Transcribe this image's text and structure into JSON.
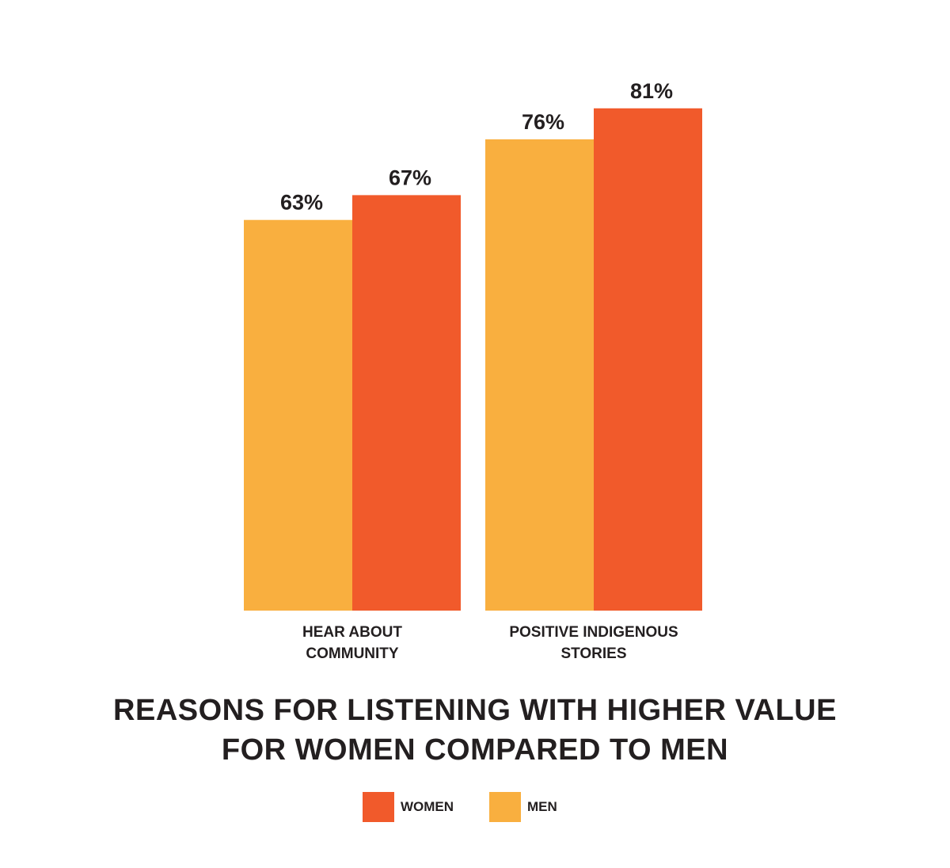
{
  "chart_data": {
    "type": "bar",
    "categories": [
      [
        "HEAR ABOUT",
        "COMMUNITY"
      ],
      [
        "POSITIVE INDIGENOUS",
        "STORIES"
      ]
    ],
    "series": [
      {
        "name": "MEN",
        "values": [
          63,
          76
        ],
        "color": "#F9AF3F"
      },
      {
        "name": "WOMEN",
        "values": [
          67,
          81
        ],
        "color": "#F15A2B"
      }
    ],
    "value_labels": [
      [
        "63%",
        "67%"
      ],
      [
        "76%",
        "81%"
      ]
    ],
    "title": [
      "REASONS FOR LISTENING WITH HIGHER VALUE",
      "FOR WOMEN COMPARED TO MEN"
    ],
    "xlabel": "",
    "ylabel": "",
    "ylim": [
      0,
      100
    ],
    "grid": false,
    "legend_placement": "bottom-center"
  },
  "legend": {
    "items": [
      {
        "label": "WOMEN",
        "color": "#F15A2B"
      },
      {
        "label": "MEN",
        "color": "#F9AF3F"
      }
    ]
  }
}
